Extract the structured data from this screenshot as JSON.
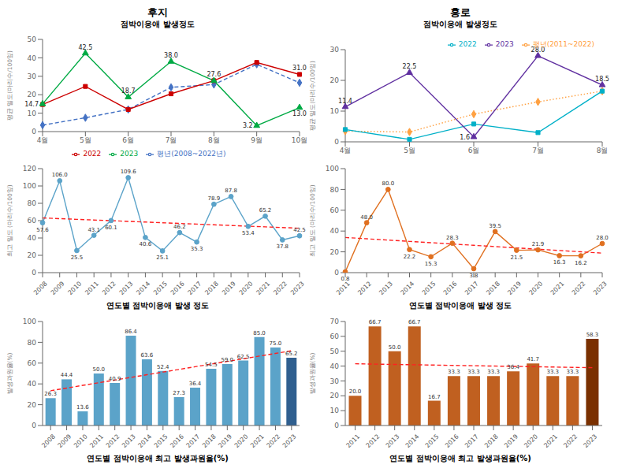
{
  "chart_data": [
    {
      "type": "line",
      "title": "후지",
      "subtitle": "점박이응애 발생정도",
      "categories": [
        "4월",
        "5월",
        "6월",
        "7월",
        "8월",
        "9월",
        "10월"
      ],
      "series": [
        {
          "name": "평년(2008~2022년)",
          "color": "#4472c4",
          "marker": "diamond",
          "line_style": "dashed",
          "values": [
            3.5,
            7.5,
            12.0,
            24.0,
            25.5,
            36.5,
            26.5
          ]
        },
        {
          "name": "2022",
          "color": "#cc0000",
          "marker": "square",
          "line_style": "solid",
          "values": [
            14.7,
            24.5,
            12.0,
            20.5,
            27.6,
            37.5,
            31.0
          ]
        },
        {
          "name": "2023",
          "color": "#00aa44",
          "marker": "triangle",
          "line_style": "solid",
          "values": [
            15.0,
            42.5,
            18.7,
            38.0,
            27.6,
            3.2,
            13.0
          ]
        }
      ],
      "ylim": [
        0,
        50
      ],
      "yticks": [
        0,
        10,
        20,
        30,
        40,
        50
      ],
      "y_label": "평균 밀도(마리수/100잎)",
      "legend": "lower center",
      "grid": false,
      "annotations": [
        {
          "text": "14.7",
          "x": "4월",
          "y": 14.7
        },
        {
          "text": "42.5",
          "x": "5월",
          "y": 42.5
        },
        {
          "text": "18.7",
          "x": "6월",
          "y": 18.7
        },
        {
          "text": "38.0",
          "x": "7월",
          "y": 38.0
        },
        {
          "text": "27.6",
          "x": "8월",
          "y": 27.6
        },
        {
          "text": "3.2",
          "x": "9월",
          "y": 3.2
        },
        {
          "text": "13.0",
          "x": "10월",
          "y": 13.0
        },
        {
          "text": "31.0",
          "x": "10월",
          "y": 31.0
        }
      ]
    },
    {
      "type": "line",
      "title": "홍로",
      "subtitle": "점박이응애 발생정도",
      "categories": [
        "4월",
        "5월",
        "6월",
        "7월",
        "8월"
      ],
      "series": [
        {
          "name": "평년(2011~2022)",
          "color": "#ffa040",
          "marker": "diamond",
          "line_style": "dotted",
          "values": [
            3.5,
            3.2,
            9.0,
            13.0,
            16.5
          ]
        },
        {
          "name": "2022",
          "color": "#00b0c8",
          "marker": "square",
          "line_style": "solid",
          "values": [
            4.0,
            0.8,
            5.8,
            3.0,
            16.5
          ]
        },
        {
          "name": "2023",
          "color": "#6030a0",
          "marker": "triangle",
          "line_style": "solid",
          "values": [
            11.4,
            22.5,
            1.6,
            28.0,
            18.5
          ]
        }
      ],
      "ylim": [
        0,
        30
      ],
      "yticks": [
        0,
        10,
        20,
        30
      ],
      "y_label": "평균 밀도(마리수/100잎)",
      "legend": "upper right",
      "grid": false,
      "annotations": [
        {
          "text": "11.4",
          "x": "4월",
          "y": 11.4
        },
        {
          "text": "22.5",
          "x": "5월",
          "y": 22.5
        },
        {
          "text": "1.6",
          "x": "6월",
          "y": 1.6
        },
        {
          "text": "28.0",
          "x": "7월",
          "y": 28.0
        },
        {
          "text": "18.5",
          "x": "8월",
          "y": 18.5
        }
      ]
    },
    {
      "type": "line",
      "categories": [
        "2008",
        "2009",
        "2010",
        "2011",
        "2012",
        "2013",
        "2014",
        "2015",
        "2016",
        "2017",
        "2018",
        "2019",
        "2020",
        "2021",
        "2022",
        "2023"
      ],
      "series": [
        {
          "color": "#5ba3c9",
          "marker": "circle",
          "line_style": "solid",
          "values": [
            57.6,
            106.0,
            25.5,
            43.1,
            60.1,
            109.6,
            40.6,
            25.1,
            46.2,
            35.3,
            78.9,
            87.8,
            53.4,
            65.2,
            37.8,
            42.5
          ],
          "value_labels": [
            "57.6",
            "106.0",
            "25.5",
            "43.1",
            "60.1",
            "109.6",
            "40.6",
            "25.1",
            "46.2",
            "35.3",
            "78.9",
            "87.8",
            "53.4",
            "65.2",
            "37.8",
            "42.5"
          ]
        },
        {
          "color": "#ff2020",
          "line_style": "dashed",
          "values": [
            63.1,
            62.31,
            61.52,
            60.73,
            59.94,
            59.15,
            58.36,
            57.56,
            56.77,
            55.98,
            55.19,
            54.4,
            53.61,
            52.82,
            52.03,
            51.23
          ]
        }
      ],
      "ylim": [
        0,
        120
      ],
      "yticks": [
        0,
        20,
        40,
        60,
        80,
        100,
        120
      ],
      "y_label": "최고 밀도 (마리수/100잎)",
      "x_label": "연도별 점박이응애 발생 정도",
      "data_labels": true,
      "grid": false
    },
    {
      "type": "line",
      "categories": [
        "2011",
        "2012",
        "2013",
        "2014",
        "2015",
        "2016",
        "2017",
        "2018",
        "2019",
        "2020",
        "2021",
        "2022",
        "2023"
      ],
      "series": [
        {
          "color": "#e07020",
          "marker": "circle",
          "line_style": "solid",
          "values": [
            0.8,
            48.0,
            80.0,
            22.2,
            15.3,
            28.3,
            3.8,
            39.5,
            21.5,
            21.9,
            16.3,
            16.2,
            28.0
          ],
          "value_labels": [
            "0.8",
            "48.0",
            "80.0",
            "22.2",
            "15.3",
            "28.3",
            "3.8",
            "39.5",
            "21.5",
            "21.9",
            "16.3",
            "16.2",
            "28.0"
          ]
        },
        {
          "color": "#ff2020",
          "line_style": "dashed",
          "values": [
            33.81,
            32.55,
            31.3,
            30.05,
            28.8,
            27.54,
            26.29,
            25.04,
            23.79,
            22.54,
            21.28,
            20.03,
            18.78
          ]
        }
      ],
      "ylim": [
        0,
        100
      ],
      "yticks": [
        0,
        20,
        40,
        60,
        80,
        100
      ],
      "y_label": "최고 밀도 (마리수/100잎)",
      "x_label": "연도별 점박이응애 발생 정도",
      "data_labels": true,
      "grid": false
    },
    {
      "type": "bar",
      "categories": [
        "2008",
        "2009",
        "2010",
        "2011",
        "2012",
        "2013",
        "2014",
        "2015",
        "2016",
        "2017",
        "2018",
        "2019",
        "2020",
        "2021",
        "2022",
        "2023"
      ],
      "series": [
        {
          "type": "bar",
          "colors": [
            "#5ba3c9",
            "#5ba3c9",
            "#5ba3c9",
            "#5ba3c9",
            "#5ba3c9",
            "#5ba3c9",
            "#5ba3c9",
            "#5ba3c9",
            "#5ba3c9",
            "#5ba3c9",
            "#5ba3c9",
            "#5ba3c9",
            "#5ba3c9",
            "#5ba3c9",
            "#5ba3c9",
            "#2f5f8f"
          ],
          "values": [
            26.3,
            44.4,
            13.6,
            50.0,
            40.9,
            86.4,
            63.6,
            52.4,
            27.3,
            36.4,
            54.5,
            59.0,
            62.5,
            85.0,
            75.0,
            65.2
          ],
          "value_labels": [
            "26.3",
            "44.4",
            "13.6",
            "50.0",
            "40.9",
            "86.4",
            "63.6",
            "52.4",
            "27.3",
            "36.4",
            "54.5",
            "59.0",
            "62.5",
            "85.0",
            "75.0",
            "65.2"
          ]
        },
        {
          "type": "line",
          "color": "#ff2020",
          "line_style": "dashed",
          "values": [
            33.47,
            36.03,
            38.59,
            41.14,
            43.7,
            46.26,
            48.82,
            51.38,
            53.94,
            56.49,
            59.05,
            61.61,
            64.17,
            66.73,
            69.29,
            71.84
          ]
        }
      ],
      "ylim": [
        0,
        100
      ],
      "yticks": [
        0,
        20,
        40,
        60,
        80,
        100
      ],
      "y_label": "발생과원율(%)",
      "x_label": "연도별 점박이응애 최고 발생과원율(%)",
      "data_labels": true,
      "grid": false
    },
    {
      "type": "bar",
      "categories": [
        "2011",
        "2012",
        "2013",
        "2014",
        "2015",
        "2016",
        "2017",
        "2018",
        "2019",
        "2020",
        "2021",
        "2022",
        "2023"
      ],
      "series": [
        {
          "type": "bar",
          "colors": [
            "#c06020",
            "#c06020",
            "#c06020",
            "#c06020",
            "#c06020",
            "#c06020",
            "#c06020",
            "#c06020",
            "#c06020",
            "#c06020",
            "#c06020",
            "#c06020",
            "#7a3000"
          ],
          "values": [
            20.0,
            66.7,
            50.0,
            66.7,
            16.7,
            33.3,
            33.3,
            33.3,
            36.4,
            41.7,
            33.3,
            33.3,
            58.3
          ],
          "value_labels": [
            "20.0",
            "66.7",
            "50.0",
            "66.7",
            "16.7",
            "33.3",
            "33.3",
            "33.3",
            "36.4",
            "41.7",
            "33.3",
            "33.3",
            "58.3"
          ]
        },
        {
          "type": "line",
          "color": "#ff2020",
          "line_style": "dashed",
          "values": [
            41.54,
            41.32,
            41.1,
            40.88,
            40.67,
            40.45,
            40.23,
            40.01,
            39.8,
            39.58,
            39.36,
            39.14,
            38.93
          ]
        }
      ],
      "ylim": [
        0,
        70
      ],
      "yticks": [
        0,
        10,
        20,
        30,
        40,
        50,
        60,
        70
      ],
      "y_label": "발생과원율(%)",
      "x_label": "연도별 점박이응애 최고 발생과원율(%)",
      "data_labels": true,
      "grid": false
    }
  ]
}
